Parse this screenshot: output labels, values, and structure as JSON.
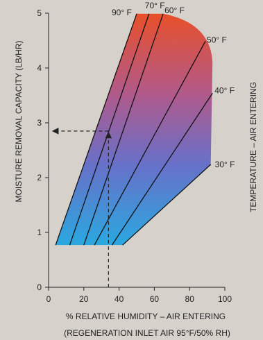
{
  "chart_data": {
    "type": "line",
    "xlabel": "% RELATIVE HUMIDITY – AIR ENTERING",
    "xsublabel": "(REGENERATION INLET AIR 95°F/50% RH)",
    "ylabel": "MOISTURE REMOVAL CAPACITY (LB/HR)",
    "right_label": "TEMPERATURE – AIR ENTERING",
    "xlim": [
      0,
      100
    ],
    "ylim": [
      0,
      5
    ],
    "x_ticks": [
      "0",
      "20",
      "40",
      "60",
      "80",
      "100"
    ],
    "y_ticks": [
      "0",
      "1",
      "2",
      "3",
      "4",
      "5"
    ],
    "series": [
      {
        "name": "90° F",
        "x": [
          4,
          50
        ],
        "y": [
          0.77,
          4.99
        ]
      },
      {
        "name": "70° F",
        "x": [
          12,
          57
        ],
        "y": [
          0.77,
          4.99
        ]
      },
      {
        "name": "60° F",
        "x": [
          20,
          65
        ],
        "y": [
          0.77,
          4.99
        ]
      },
      {
        "name": "50° F",
        "x": [
          26,
          89
        ],
        "y": [
          0.77,
          4.49
        ]
      },
      {
        "name": "40° F",
        "x": [
          36,
          93
        ],
        "y": [
          0.77,
          3.54
        ]
      },
      {
        "name": "30° F",
        "x": [
          42,
          92
        ],
        "y": [
          0.77,
          2.24
        ]
      }
    ],
    "example": {
      "x": 34,
      "y": 2.85
    },
    "region_colors": {
      "top": "#e8502a",
      "bottom": "#2aa8e0"
    }
  }
}
